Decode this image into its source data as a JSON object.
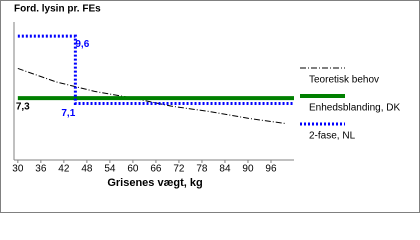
{
  "chart_data": {
    "type": "line",
    "title": "Ford. lysin pr. FEs",
    "x_label": "Grisenes vægt, kg",
    "xlim": [
      29,
      102
    ],
    "xticks": [
      30,
      36,
      42,
      48,
      54,
      60,
      66,
      72,
      78,
      84,
      90,
      96
    ],
    "ylim": [
      5,
      10.2
    ],
    "series": [
      {
        "name": "Teoretisk behov",
        "color": "#000000",
        "style": "dashdot",
        "x": [
          30,
          40,
          50,
          60,
          70,
          80,
          90,
          100
        ],
        "values": [
          8.4,
          7.9,
          7.55,
          7.3,
          7.0,
          6.8,
          6.55,
          6.35
        ]
      },
      {
        "name": "Enhedsblanding, DK",
        "color": "#008000",
        "style": "solid",
        "x": [
          30,
          102
        ],
        "values": [
          7.3,
          7.3
        ],
        "value_labels": [
          "7,3",
          null
        ]
      },
      {
        "name": "2-fase, NL",
        "color": "#0000ff",
        "style": "dotted",
        "x": [
          30,
          45,
          45,
          102
        ],
        "values": [
          9.6,
          9.6,
          7.1,
          7.1
        ],
        "value_labels": [
          null,
          "9,6",
          "7,1",
          null
        ]
      }
    ]
  }
}
